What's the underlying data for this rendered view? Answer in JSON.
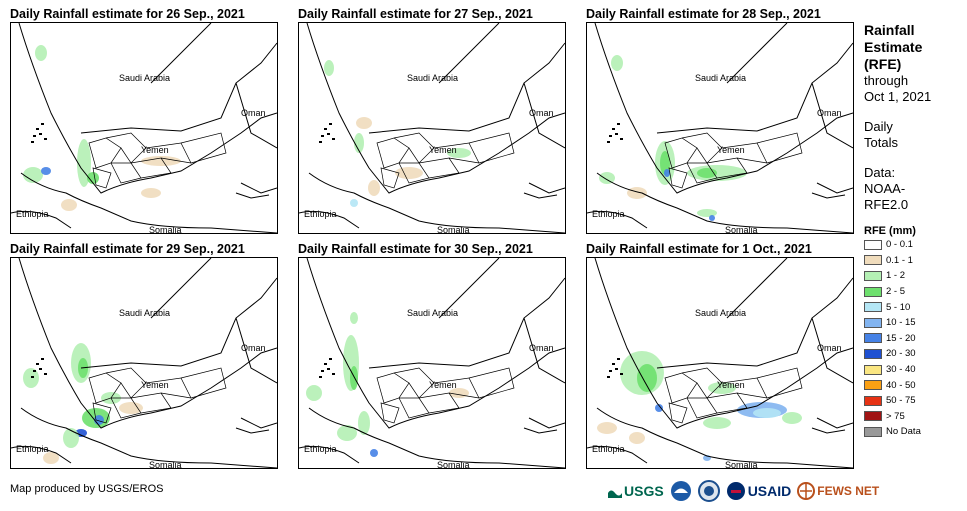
{
  "panels": [
    {
      "title": "Daily Rainfall estimate for 26 Sep., 2021"
    },
    {
      "title": "Daily Rainfall estimate for 27 Sep., 2021"
    },
    {
      "title": "Daily Rainfall estimate for 28 Sep., 2021"
    },
    {
      "title": "Daily Rainfall estimate for 29 Sep., 2021"
    },
    {
      "title": "Daily Rainfall estimate for 30 Sep., 2021"
    },
    {
      "title": "Daily Rainfall estimate for 1 Oct., 2021"
    }
  ],
  "map_labels": {
    "saudi_arabia": "Saudi Arabia",
    "oman": "Oman",
    "yemen": "Yemen",
    "ethiopia": "Ethiopia",
    "somalia": "Somalia"
  },
  "side": {
    "title_line1": "Rainfall",
    "title_line2": "Estimate",
    "title_line3": "(RFE)",
    "through": "through",
    "date": "Oct 1, 2021",
    "daily1": "Daily",
    "daily2": "Totals",
    "data1": "Data:",
    "data2": "NOAA-",
    "data3": "RFE2.0"
  },
  "legend": {
    "title": "RFE (mm)",
    "items": [
      {
        "label": "0 - 0.1",
        "color": "#ffffff"
      },
      {
        "label": "0.1 - 1",
        "color": "#f0dcbc"
      },
      {
        "label": "1 - 2",
        "color": "#b4f0b4"
      },
      {
        "label": "2 - 5",
        "color": "#6ee06e"
      },
      {
        "label": "5 - 10",
        "color": "#b4e6f5"
      },
      {
        "label": "10 - 15",
        "color": "#82b4f0"
      },
      {
        "label": "15 - 20",
        "color": "#4682e6"
      },
      {
        "label": "20 - 30",
        "color": "#1e50d2"
      },
      {
        "label": "30 - 40",
        "color": "#fae682"
      },
      {
        "label": "40 - 50",
        "color": "#faa014"
      },
      {
        "label": "50 - 75",
        "color": "#e63214"
      },
      {
        "label": "> 75",
        "color": "#a01414"
      },
      {
        "label": "No Data",
        "color": "#999999"
      }
    ]
  },
  "footer": "Map produced by USGS/EROS",
  "logos": {
    "usgs": "USGS",
    "usaid": "USAID",
    "fews": "FEWS NET"
  }
}
